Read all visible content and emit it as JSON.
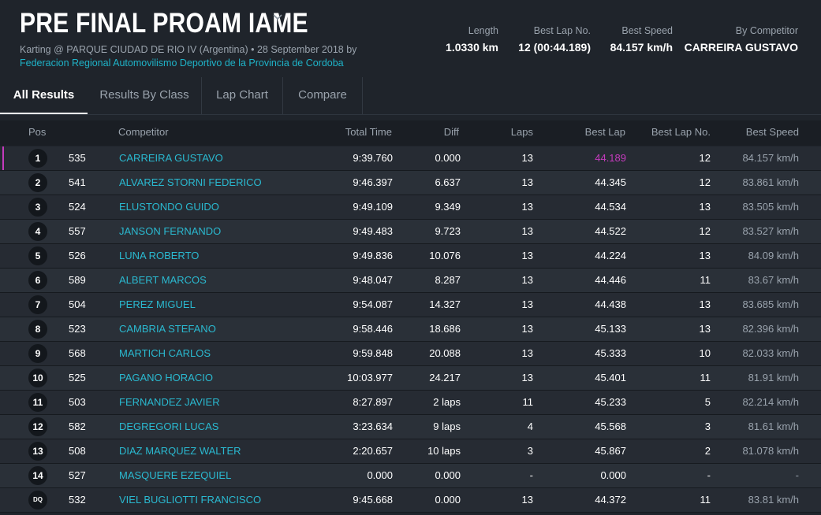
{
  "header": {
    "title": "PRE FINAL PROAM IAME",
    "subtitle": "Karting @ PARQUE CIUDAD DE RIO IV (Argentina) • 28 September 2018 by",
    "organizer": "Federacion Regional Automovilismo Deportivo de la Provincia de Cordoba",
    "title_dropdown_icon": "chevron-down-icon"
  },
  "stats": {
    "length_label": "Length",
    "length_value": "1.0330 km",
    "best_lap_no_label": "Best Lap No.",
    "best_lap_no_value": "12 (00:44.189)",
    "best_speed_label": "Best Speed",
    "best_speed_value": "84.157 km/h",
    "by_competitor_label": "By Competitor",
    "by_competitor_value": "CARREIRA GUSTAVO"
  },
  "tabs": [
    "All Results",
    "Results By Class",
    "Lap Chart",
    "Compare"
  ],
  "columns": {
    "pos": "Pos",
    "competitor": "Competitor",
    "total_time": "Total Time",
    "diff": "Diff",
    "laps": "Laps",
    "best_lap": "Best Lap",
    "best_lap_no": "Best Lap No.",
    "best_speed": "Best Speed"
  },
  "colors": {
    "accent": "#2ab9d0",
    "best_lap_highlight": "#c43bbd",
    "background": "#1f242b"
  },
  "rows": [
    {
      "pos": "1",
      "no": "535",
      "competitor": "CARREIRA GUSTAVO",
      "total": "9:39.760",
      "diff": "0.000",
      "laps": "13",
      "best_lap": "44.189",
      "best_lap_no": "12",
      "best_speed": "84.157 km/h"
    },
    {
      "pos": "2",
      "no": "541",
      "competitor": "ALVAREZ STORNI FEDERICO",
      "total": "9:46.397",
      "diff": "6.637",
      "laps": "13",
      "best_lap": "44.345",
      "best_lap_no": "12",
      "best_speed": "83.861 km/h"
    },
    {
      "pos": "3",
      "no": "524",
      "competitor": "ELUSTONDO GUIDO",
      "total": "9:49.109",
      "diff": "9.349",
      "laps": "13",
      "best_lap": "44.534",
      "best_lap_no": "13",
      "best_speed": "83.505 km/h"
    },
    {
      "pos": "4",
      "no": "557",
      "competitor": "JANSON FERNANDO",
      "total": "9:49.483",
      "diff": "9.723",
      "laps": "13",
      "best_lap": "44.522",
      "best_lap_no": "12",
      "best_speed": "83.527 km/h"
    },
    {
      "pos": "5",
      "no": "526",
      "competitor": "LUNA ROBERTO",
      "total": "9:49.836",
      "diff": "10.076",
      "laps": "13",
      "best_lap": "44.224",
      "best_lap_no": "13",
      "best_speed": "84.09 km/h"
    },
    {
      "pos": "6",
      "no": "589",
      "competitor": "ALBERT MARCOS",
      "total": "9:48.047",
      "diff": "8.287",
      "laps": "13",
      "best_lap": "44.446",
      "best_lap_no": "11",
      "best_speed": "83.67 km/h"
    },
    {
      "pos": "7",
      "no": "504",
      "competitor": "PEREZ MIGUEL",
      "total": "9:54.087",
      "diff": "14.327",
      "laps": "13",
      "best_lap": "44.438",
      "best_lap_no": "13",
      "best_speed": "83.685 km/h"
    },
    {
      "pos": "8",
      "no": "523",
      "competitor": "CAMBRIA STEFANO",
      "total": "9:58.446",
      "diff": "18.686",
      "laps": "13",
      "best_lap": "45.133",
      "best_lap_no": "13",
      "best_speed": "82.396 km/h"
    },
    {
      "pos": "9",
      "no": "568",
      "competitor": "MARTICH CARLOS",
      "total": "9:59.848",
      "diff": "20.088",
      "laps": "13",
      "best_lap": "45.333",
      "best_lap_no": "10",
      "best_speed": "82.033 km/h"
    },
    {
      "pos": "10",
      "no": "525",
      "competitor": "PAGANO HORACIO",
      "total": "10:03.977",
      "diff": "24.217",
      "laps": "13",
      "best_lap": "45.401",
      "best_lap_no": "11",
      "best_speed": "81.91 km/h"
    },
    {
      "pos": "11",
      "no": "503",
      "competitor": "FERNANDEZ JAVIER",
      "total": "8:27.897",
      "diff": "2 laps",
      "laps": "11",
      "best_lap": "45.233",
      "best_lap_no": "5",
      "best_speed": "82.214 km/h"
    },
    {
      "pos": "12",
      "no": "582",
      "competitor": "DEGREGORI LUCAS",
      "total": "3:23.634",
      "diff": "9 laps",
      "laps": "4",
      "best_lap": "45.568",
      "best_lap_no": "3",
      "best_speed": "81.61 km/h"
    },
    {
      "pos": "13",
      "no": "508",
      "competitor": "DIAZ MARQUEZ WALTER",
      "total": "2:20.657",
      "diff": "10 laps",
      "laps": "3",
      "best_lap": "45.867",
      "best_lap_no": "2",
      "best_speed": "81.078 km/h"
    },
    {
      "pos": "14",
      "no": "527",
      "competitor": "MASQUERE EZEQUIEL",
      "total": "0.000",
      "diff": "0.000",
      "laps": "-",
      "best_lap": "0.000",
      "best_lap_no": "-",
      "best_speed": "-"
    },
    {
      "pos": "DQ",
      "no": "532",
      "competitor": "VIEL BUGLIOTTI FRANCISCO",
      "total": "9:45.668",
      "diff": "0.000",
      "laps": "13",
      "best_lap": "44.372",
      "best_lap_no": "11",
      "best_speed": "83.81 km/h"
    }
  ]
}
